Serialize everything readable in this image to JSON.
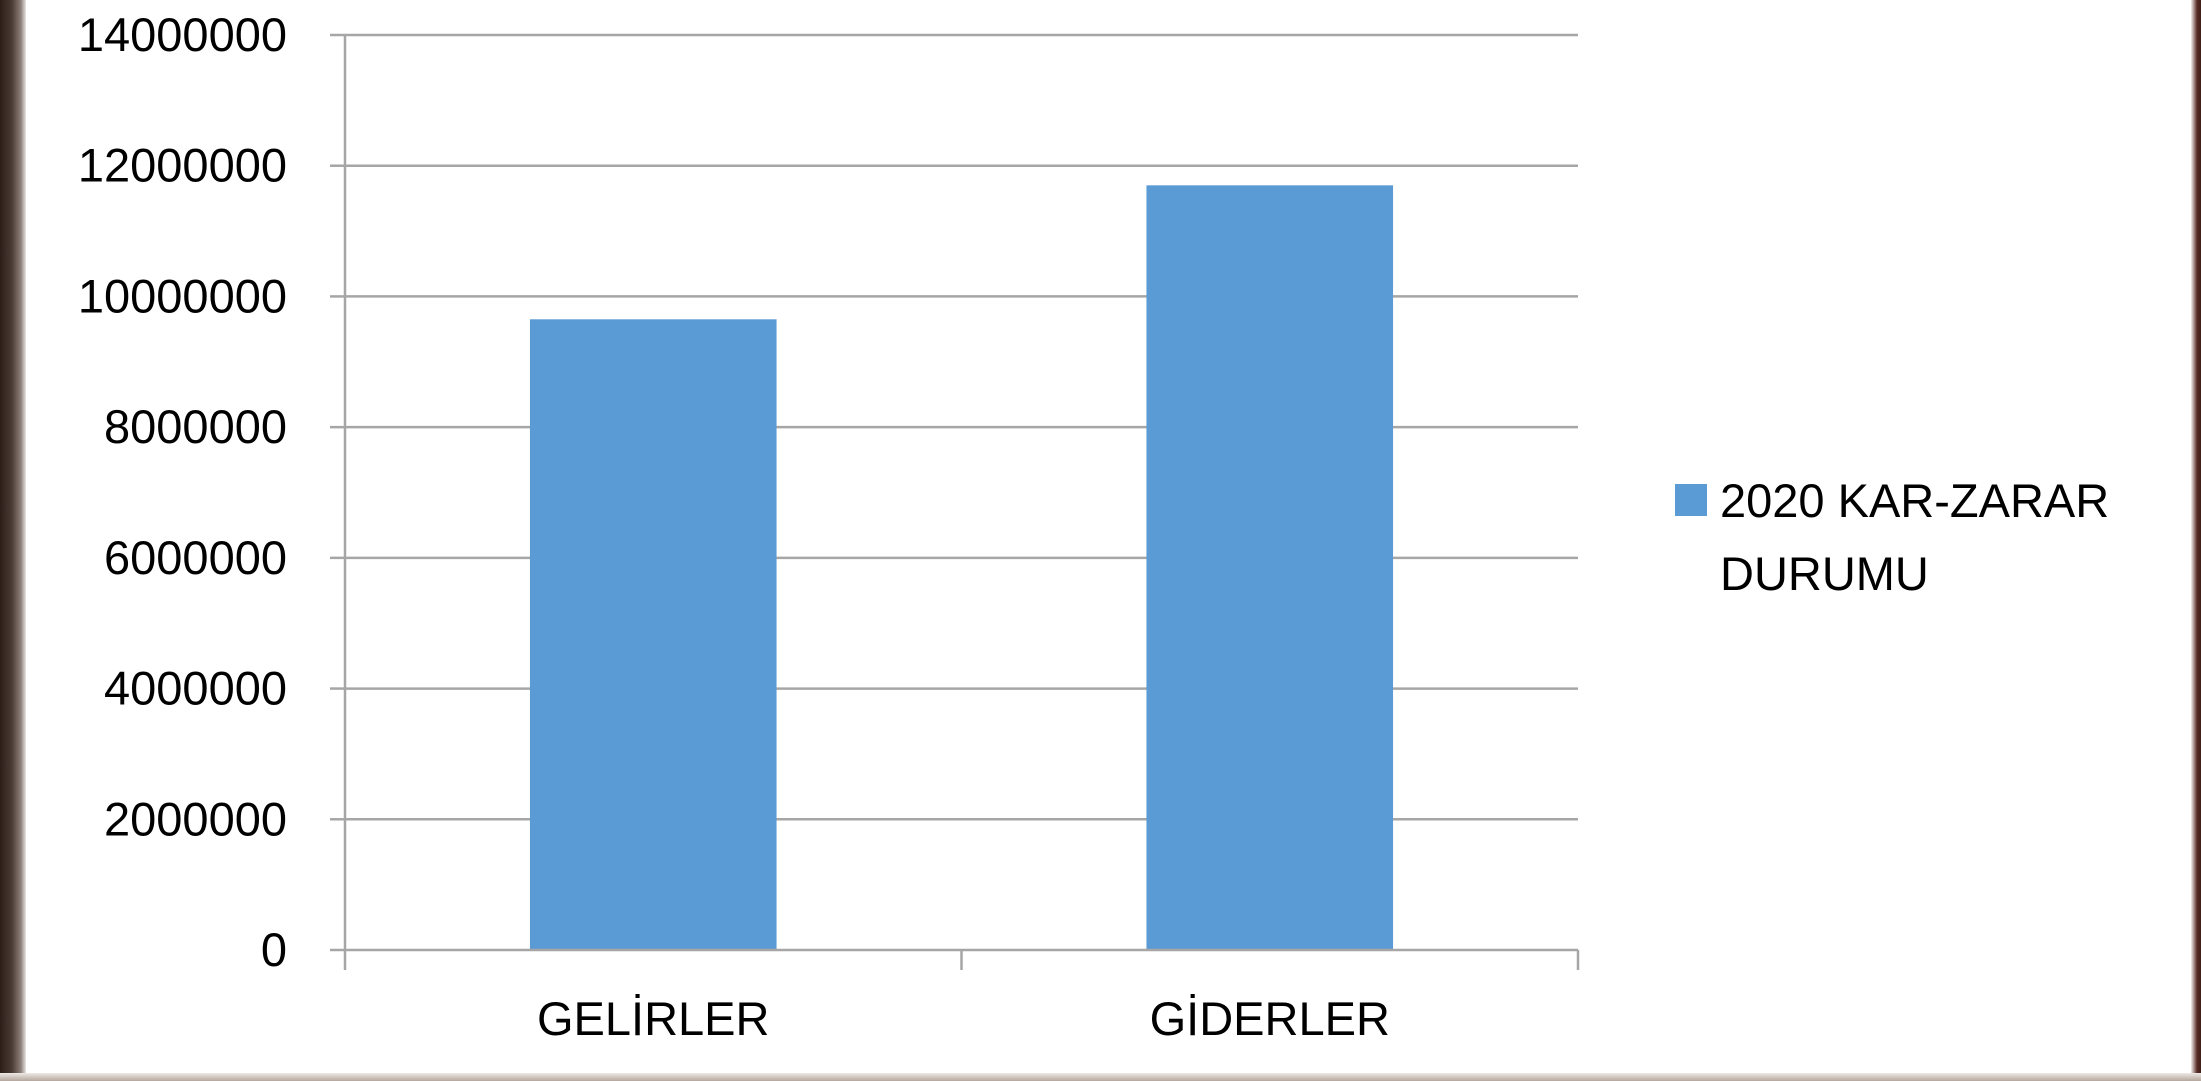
{
  "chart_data": {
    "type": "bar",
    "categories": [
      "GELİRLER",
      "GİDERLER"
    ],
    "series": [
      {
        "name": "2020 KAR-ZARAR DURUMU",
        "values": [
          9650000,
          11700000
        ]
      }
    ],
    "yticks": [
      "0",
      "2000000",
      "4000000",
      "6000000",
      "8000000",
      "10000000",
      "12000000",
      "14000000"
    ],
    "ylim": [
      0,
      14000000
    ],
    "grid": true,
    "legend_position": "right",
    "legend_lines": [
      "2020 KAR-ZARAR",
      "DURUMU"
    ],
    "colors": {
      "bar": "#5B9BD5",
      "grid": "#A6A6A6",
      "axis": "#A6A6A6"
    }
  }
}
